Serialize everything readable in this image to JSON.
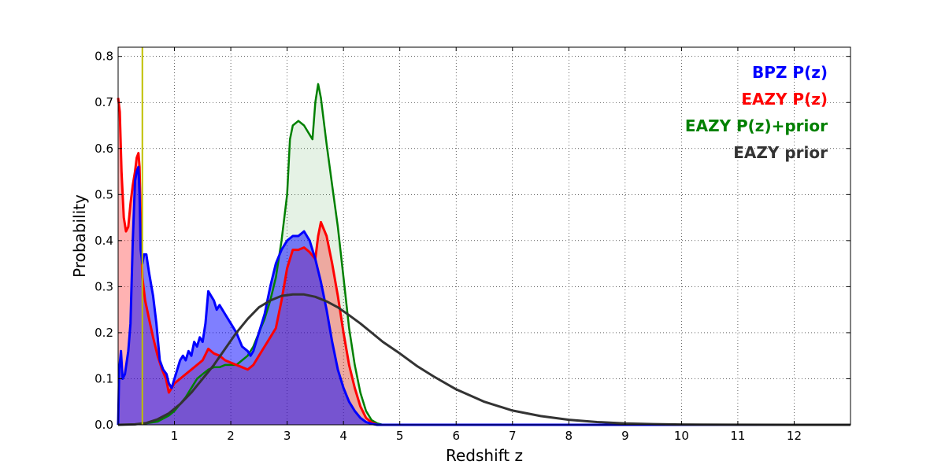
{
  "chart_data": {
    "type": "area",
    "xlabel": "Redshift z",
    "ylabel": "Probability",
    "xlim": [
      0,
      13
    ],
    "ylim": [
      0,
      0.82
    ],
    "x_ticks": [
      1,
      2,
      3,
      4,
      5,
      6,
      7,
      8,
      9,
      10,
      11,
      12
    ],
    "y_ticks": [
      0.0,
      0.1,
      0.2,
      0.3,
      0.4,
      0.5,
      0.6,
      0.7,
      0.8
    ],
    "x_tick_labels": [
      "1",
      "2",
      "3",
      "4",
      "5",
      "6",
      "7",
      "8",
      "9",
      "10",
      "11",
      "12"
    ],
    "y_tick_labels": [
      "0.0",
      "0.1",
      "0.2",
      "0.3",
      "0.4",
      "0.5",
      "0.6",
      "0.7",
      "0.8"
    ],
    "grid": true,
    "legend_position": "top-right",
    "vertical_line": {
      "x": 0.43,
      "color": "#bfbf00"
    },
    "series": [
      {
        "name": "BPZ P(z)",
        "color": "#0000ff",
        "filled": true,
        "points": [
          [
            0.0,
            0.0
          ],
          [
            0.02,
            0.12
          ],
          [
            0.05,
            0.16
          ],
          [
            0.08,
            0.1
          ],
          [
            0.12,
            0.11
          ],
          [
            0.18,
            0.16
          ],
          [
            0.22,
            0.22
          ],
          [
            0.26,
            0.4
          ],
          [
            0.3,
            0.53
          ],
          [
            0.33,
            0.55
          ],
          [
            0.36,
            0.56
          ],
          [
            0.38,
            0.5
          ],
          [
            0.4,
            0.38
          ],
          [
            0.43,
            0.35
          ],
          [
            0.46,
            0.37
          ],
          [
            0.5,
            0.37
          ],
          [
            0.55,
            0.33
          ],
          [
            0.62,
            0.28
          ],
          [
            0.68,
            0.22
          ],
          [
            0.74,
            0.14
          ],
          [
            0.8,
            0.12
          ],
          [
            0.86,
            0.11
          ],
          [
            0.9,
            0.09
          ],
          [
            0.95,
            0.08
          ],
          [
            1.0,
            0.1
          ],
          [
            1.05,
            0.12
          ],
          [
            1.1,
            0.14
          ],
          [
            1.15,
            0.15
          ],
          [
            1.2,
            0.14
          ],
          [
            1.25,
            0.16
          ],
          [
            1.3,
            0.15
          ],
          [
            1.35,
            0.18
          ],
          [
            1.4,
            0.17
          ],
          [
            1.45,
            0.19
          ],
          [
            1.5,
            0.18
          ],
          [
            1.55,
            0.22
          ],
          [
            1.6,
            0.29
          ],
          [
            1.65,
            0.28
          ],
          [
            1.7,
            0.27
          ],
          [
            1.75,
            0.25
          ],
          [
            1.8,
            0.26
          ],
          [
            1.9,
            0.24
          ],
          [
            2.0,
            0.22
          ],
          [
            2.1,
            0.2
          ],
          [
            2.2,
            0.17
          ],
          [
            2.3,
            0.16
          ],
          [
            2.35,
            0.15
          ],
          [
            2.4,
            0.16
          ],
          [
            2.5,
            0.2
          ],
          [
            2.6,
            0.24
          ],
          [
            2.7,
            0.3
          ],
          [
            2.8,
            0.35
          ],
          [
            2.9,
            0.38
          ],
          [
            3.0,
            0.4
          ],
          [
            3.1,
            0.41
          ],
          [
            3.2,
            0.41
          ],
          [
            3.3,
            0.42
          ],
          [
            3.4,
            0.4
          ],
          [
            3.5,
            0.36
          ],
          [
            3.6,
            0.31
          ],
          [
            3.7,
            0.25
          ],
          [
            3.8,
            0.18
          ],
          [
            3.9,
            0.12
          ],
          [
            4.0,
            0.08
          ],
          [
            4.1,
            0.05
          ],
          [
            4.2,
            0.03
          ],
          [
            4.3,
            0.015
          ],
          [
            4.4,
            0.006
          ],
          [
            4.5,
            0.002
          ],
          [
            4.6,
            0.0
          ],
          [
            13.0,
            0.0
          ]
        ]
      },
      {
        "name": "EAZY P(z)",
        "color": "#ff0000",
        "filled": true,
        "points": [
          [
            0.0,
            0.71
          ],
          [
            0.03,
            0.68
          ],
          [
            0.06,
            0.55
          ],
          [
            0.1,
            0.45
          ],
          [
            0.14,
            0.42
          ],
          [
            0.18,
            0.43
          ],
          [
            0.22,
            0.48
          ],
          [
            0.26,
            0.52
          ],
          [
            0.3,
            0.55
          ],
          [
            0.33,
            0.58
          ],
          [
            0.36,
            0.59
          ],
          [
            0.38,
            0.56
          ],
          [
            0.4,
            0.45
          ],
          [
            0.43,
            0.32
          ],
          [
            0.48,
            0.27
          ],
          [
            0.55,
            0.23
          ],
          [
            0.62,
            0.19
          ],
          [
            0.7,
            0.15
          ],
          [
            0.78,
            0.12
          ],
          [
            0.85,
            0.1
          ],
          [
            0.9,
            0.07
          ],
          [
            0.95,
            0.08
          ],
          [
            1.0,
            0.09
          ],
          [
            1.1,
            0.1
          ],
          [
            1.2,
            0.11
          ],
          [
            1.3,
            0.12
          ],
          [
            1.4,
            0.13
          ],
          [
            1.5,
            0.14
          ],
          [
            1.6,
            0.165
          ],
          [
            1.7,
            0.155
          ],
          [
            1.8,
            0.15
          ],
          [
            1.9,
            0.14
          ],
          [
            2.0,
            0.135
          ],
          [
            2.1,
            0.13
          ],
          [
            2.2,
            0.125
          ],
          [
            2.3,
            0.12
          ],
          [
            2.4,
            0.13
          ],
          [
            2.5,
            0.15
          ],
          [
            2.6,
            0.17
          ],
          [
            2.7,
            0.19
          ],
          [
            2.8,
            0.21
          ],
          [
            2.9,
            0.27
          ],
          [
            3.0,
            0.34
          ],
          [
            3.1,
            0.38
          ],
          [
            3.2,
            0.38
          ],
          [
            3.3,
            0.385
          ],
          [
            3.4,
            0.375
          ],
          [
            3.5,
            0.36
          ],
          [
            3.55,
            0.41
          ],
          [
            3.6,
            0.44
          ],
          [
            3.7,
            0.41
          ],
          [
            3.8,
            0.35
          ],
          [
            3.9,
            0.28
          ],
          [
            4.0,
            0.2
          ],
          [
            4.1,
            0.13
          ],
          [
            4.2,
            0.08
          ],
          [
            4.3,
            0.04
          ],
          [
            4.4,
            0.015
          ],
          [
            4.5,
            0.005
          ],
          [
            4.6,
            0.0
          ],
          [
            13.0,
            0.0
          ]
        ]
      },
      {
        "name": "EAZY P(z)+prior",
        "color": "#008000",
        "filled": true,
        "points": [
          [
            0.0,
            0.0
          ],
          [
            0.3,
            0.001
          ],
          [
            0.5,
            0.003
          ],
          [
            0.7,
            0.007
          ],
          [
            0.9,
            0.02
          ],
          [
            1.0,
            0.03
          ],
          [
            1.1,
            0.045
          ],
          [
            1.2,
            0.06
          ],
          [
            1.3,
            0.08
          ],
          [
            1.4,
            0.1
          ],
          [
            1.5,
            0.11
          ],
          [
            1.6,
            0.12
          ],
          [
            1.7,
            0.125
          ],
          [
            1.8,
            0.125
          ],
          [
            1.9,
            0.13
          ],
          [
            2.0,
            0.13
          ],
          [
            2.1,
            0.13
          ],
          [
            2.2,
            0.14
          ],
          [
            2.3,
            0.15
          ],
          [
            2.4,
            0.17
          ],
          [
            2.5,
            0.2
          ],
          [
            2.6,
            0.23
          ],
          [
            2.7,
            0.27
          ],
          [
            2.8,
            0.32
          ],
          [
            2.9,
            0.4
          ],
          [
            3.0,
            0.5
          ],
          [
            3.05,
            0.62
          ],
          [
            3.1,
            0.65
          ],
          [
            3.2,
            0.66
          ],
          [
            3.3,
            0.65
          ],
          [
            3.4,
            0.63
          ],
          [
            3.45,
            0.62
          ],
          [
            3.5,
            0.7
          ],
          [
            3.55,
            0.74
          ],
          [
            3.6,
            0.71
          ],
          [
            3.7,
            0.61
          ],
          [
            3.8,
            0.52
          ],
          [
            3.9,
            0.43
          ],
          [
            4.0,
            0.32
          ],
          [
            4.1,
            0.21
          ],
          [
            4.2,
            0.13
          ],
          [
            4.3,
            0.07
          ],
          [
            4.4,
            0.03
          ],
          [
            4.5,
            0.01
          ],
          [
            4.6,
            0.003
          ],
          [
            4.7,
            0.0
          ],
          [
            13.0,
            0.0
          ]
        ]
      },
      {
        "name": "EAZY prior",
        "color": "#333333",
        "filled": false,
        "points": [
          [
            0.0,
            0.0
          ],
          [
            0.3,
            0.001
          ],
          [
            0.5,
            0.004
          ],
          [
            0.7,
            0.012
          ],
          [
            0.9,
            0.025
          ],
          [
            1.1,
            0.045
          ],
          [
            1.3,
            0.07
          ],
          [
            1.5,
            0.1
          ],
          [
            1.7,
            0.13
          ],
          [
            1.9,
            0.165
          ],
          [
            2.1,
            0.2
          ],
          [
            2.3,
            0.23
          ],
          [
            2.5,
            0.255
          ],
          [
            2.7,
            0.27
          ],
          [
            2.9,
            0.28
          ],
          [
            3.1,
            0.283
          ],
          [
            3.3,
            0.283
          ],
          [
            3.5,
            0.278
          ],
          [
            3.7,
            0.268
          ],
          [
            3.9,
            0.255
          ],
          [
            4.1,
            0.238
          ],
          [
            4.3,
            0.22
          ],
          [
            4.5,
            0.2
          ],
          [
            4.7,
            0.18
          ],
          [
            5.0,
            0.155
          ],
          [
            5.3,
            0.128
          ],
          [
            5.6,
            0.105
          ],
          [
            6.0,
            0.077
          ],
          [
            6.5,
            0.05
          ],
          [
            7.0,
            0.031
          ],
          [
            7.5,
            0.019
          ],
          [
            8.0,
            0.011
          ],
          [
            8.5,
            0.006
          ],
          [
            9.0,
            0.003
          ],
          [
            9.5,
            0.0015
          ],
          [
            10.0,
            0.0007
          ],
          [
            11.0,
            0.0001
          ],
          [
            12.0,
            0.0
          ],
          [
            13.0,
            0.0
          ]
        ]
      }
    ]
  }
}
